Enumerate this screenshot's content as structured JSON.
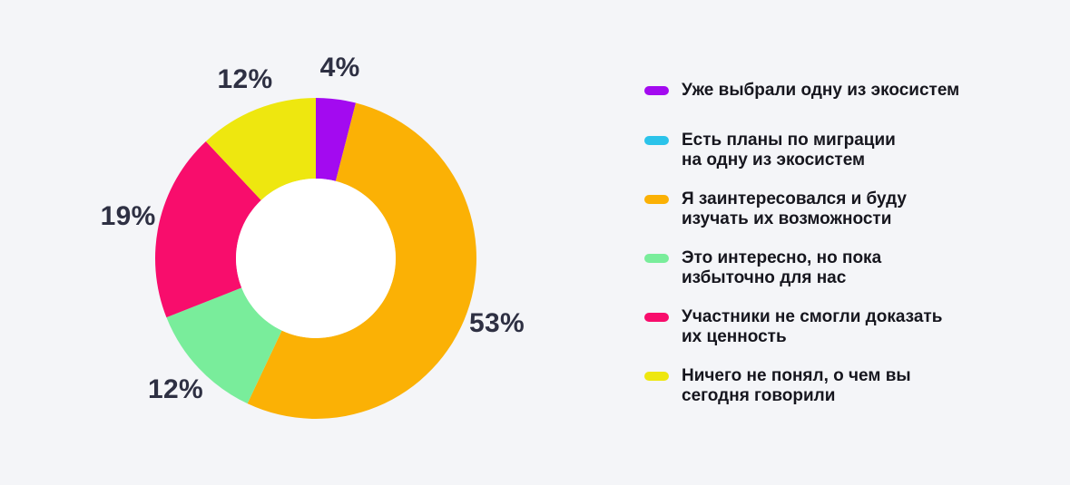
{
  "background_color": "#F4F5F8",
  "value_label_color": "#2E3043",
  "legend_text_color": "#16161E",
  "chart_data": {
    "type": "pie",
    "subtype": "donut",
    "title": "",
    "unit": "%",
    "start_angle_deg": 0,
    "direction": "clockwise",
    "legend_position": "right",
    "hole_fill": "#FFFFFF",
    "categories": [
      "Уже выбрали одну из экосистем",
      "Есть планы по миграции на одну из экосистем",
      "Я заинтересовался и буду изучать их возможности",
      "Это интересно, но пока избыточно для нас",
      "Участники не смогли доказать их ценность",
      "Ничего не понял, о чем вы сегодня говорили"
    ],
    "values": [
      4,
      0,
      53,
      12,
      19,
      12
    ],
    "colors": [
      "#A30AF0",
      "#2BC3EA",
      "#FBB105",
      "#79ED9B",
      "#F80D6C",
      "#EEE70F"
    ],
    "visible_value_labels": [
      "4%",
      "53%",
      "12%",
      "19%",
      "12%"
    ]
  },
  "legend": {
    "items": [
      {
        "label": "Уже выбрали одну из экосистем",
        "color": "#A30AF0"
      },
      {
        "label": "Есть планы по миграции\nна одну из экосистем",
        "color": "#2BC3EA"
      },
      {
        "label": "Я заинтересовался и буду\nизучать их возможности",
        "color": "#FBB105"
      },
      {
        "label": "Это интересно, но пока\nизбыточно для нас",
        "color": "#79ED9B"
      },
      {
        "label": "Участники не смогли доказать\nих ценность",
        "color": "#F80D6C"
      },
      {
        "label": "Ничего не понял, о чем вы\nсегодня говорили",
        "color": "#EEE70F"
      }
    ]
  }
}
